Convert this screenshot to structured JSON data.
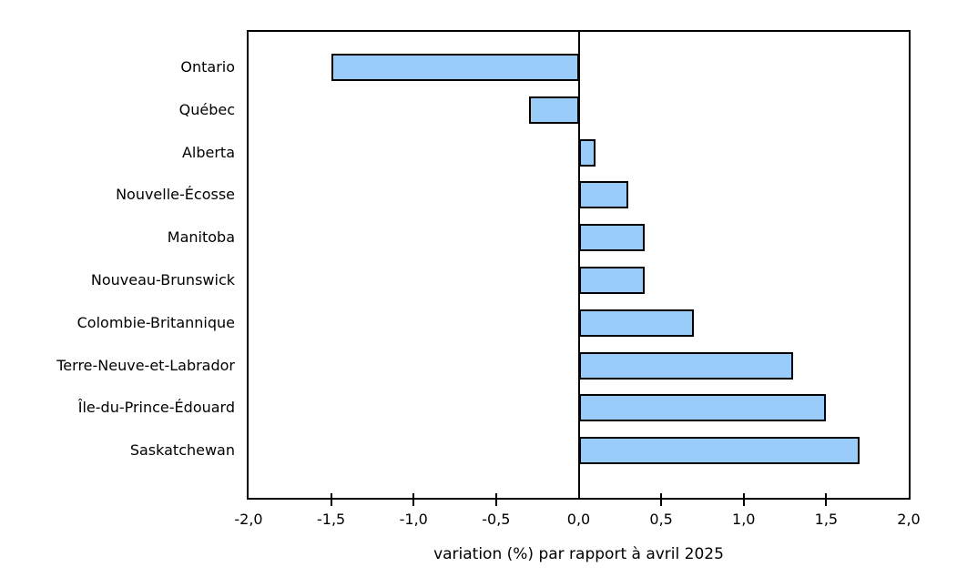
{
  "chart_data": {
    "type": "bar",
    "orientation": "horizontal",
    "title": "",
    "categories": [
      "Ontario",
      "Québec",
      "Alberta",
      "Nouvelle-Écosse",
      "Manitoba",
      "Nouveau-Brunswick",
      "Colombie-Britannique",
      "Terre-Neuve-et-Labrador",
      "Île-du-Prince-Édouard",
      "Saskatchewan"
    ],
    "values": [
      -1.5,
      -0.3,
      0.1,
      0.3,
      0.4,
      0.4,
      0.7,
      1.3,
      1.5,
      1.7
    ],
    "xlabel": "variation (%) par rapport à avril 2025",
    "ylabel": "",
    "xlim": [
      -2.0,
      2.0
    ],
    "xticks": [
      -2.0,
      -1.5,
      -1.0,
      -0.5,
      0.0,
      0.5,
      1.0,
      1.5,
      2.0
    ],
    "xtick_labels": [
      "-2,0",
      "-1,5",
      "-1,0",
      "-0,5",
      "0,0",
      "0,5",
      "1,0",
      "1,5",
      "2,0"
    ],
    "grid": false,
    "zero_line": true,
    "legend": "none",
    "bar_face_color": "#99CCF9",
    "bar_edge_color": "#000000",
    "axis_color": "#000000",
    "text_color": "#000000",
    "background_color": "#FFFFFF"
  }
}
